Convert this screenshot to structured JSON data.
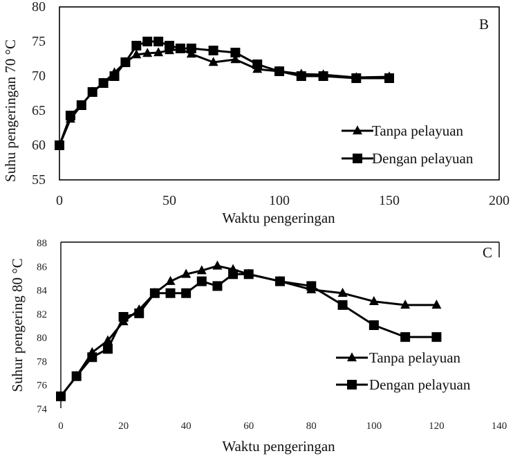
{
  "chart_data": [
    {
      "type": "line",
      "panel_label": "B",
      "xlabel": "Waktu pengeringan",
      "ylabel": "Suhu pengeringan 70 °C",
      "xlim": [
        0,
        200
      ],
      "ylim": [
        55,
        80
      ],
      "xticks": [
        0,
        50,
        100,
        150,
        200
      ],
      "yticks": [
        55,
        60,
        65,
        70,
        75,
        80
      ],
      "legend_position": "right",
      "grid": false,
      "series": [
        {
          "name": "Tanpa pelayuan",
          "marker": "triangle",
          "x": [
            0,
            5,
            10,
            15,
            20,
            25,
            30,
            35,
            40,
            45,
            50,
            55,
            60,
            70,
            80,
            90,
            100,
            110,
            120,
            135,
            150
          ],
          "y": [
            60,
            63.8,
            65.8,
            67.7,
            69,
            70.5,
            72,
            73.1,
            73.3,
            73.4,
            73.7,
            73.9,
            73.2,
            72,
            72.4,
            71,
            70.7,
            70.3,
            70.2,
            69.8,
            69.9
          ]
        },
        {
          "name": "Dengan pelayuan",
          "marker": "square",
          "x": [
            0,
            5,
            10,
            15,
            20,
            25,
            30,
            35,
            40,
            45,
            50,
            55,
            60,
            70,
            80,
            90,
            100,
            110,
            120,
            135,
            150
          ],
          "y": [
            60,
            64.3,
            65.8,
            67.7,
            69,
            70,
            72,
            74.4,
            75,
            75,
            74.4,
            74,
            74,
            73.7,
            73.4,
            71.7,
            70.7,
            70,
            70,
            69.7,
            69.7
          ]
        }
      ]
    },
    {
      "type": "line",
      "panel_label": "C",
      "xlabel": "Waktu pengeringan",
      "ylabel": "Suhur  pengering 80 °C",
      "xlim": [
        0,
        140
      ],
      "ylim": [
        74,
        88
      ],
      "xticks": [
        0,
        20,
        40,
        60,
        80,
        100,
        120,
        140
      ],
      "yticks": [
        74,
        76,
        78,
        80,
        82,
        84,
        86,
        88
      ],
      "legend_position": "bottom-right",
      "grid": false,
      "series": [
        {
          "name": "Tanpa pelayuan",
          "marker": "triangle",
          "x": [
            0,
            5,
            10,
            15,
            20,
            25,
            30,
            35,
            40,
            45,
            50,
            55,
            60,
            70,
            80,
            90,
            100,
            110,
            120
          ],
          "y": [
            75,
            76.7,
            78.7,
            79.7,
            81.3,
            82.3,
            83.7,
            84.7,
            85.3,
            85.6,
            86,
            85.7,
            85.3,
            84.7,
            84,
            83.7,
            83,
            82.7,
            82.7
          ]
        },
        {
          "name": "Dengan pelayuan",
          "marker": "square",
          "x": [
            0,
            5,
            10,
            15,
            20,
            25,
            30,
            35,
            40,
            45,
            50,
            55,
            60,
            70,
            80,
            90,
            100,
            110,
            120
          ],
          "y": [
            75,
            76.7,
            78.3,
            79,
            81.7,
            82,
            83.7,
            83.7,
            83.7,
            84.7,
            84.3,
            85.3,
            85.3,
            84.7,
            84.3,
            82.7,
            81,
            80,
            80
          ]
        }
      ]
    }
  ]
}
